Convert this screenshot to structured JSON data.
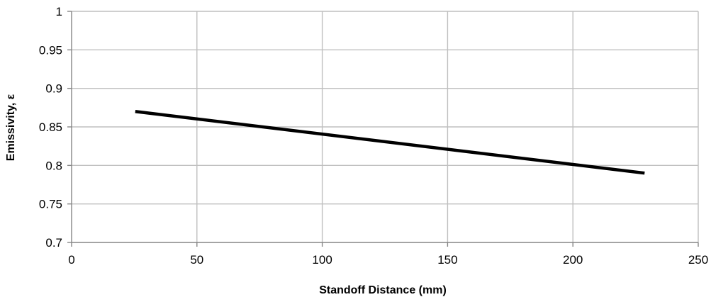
{
  "chart_data": {
    "type": "line",
    "title": "",
    "xlabel": "Standoff Distance (mm)",
    "ylabel": "Emissivity, ε",
    "xlim": [
      0,
      250
    ],
    "ylim": [
      0.7,
      1
    ],
    "x_ticks": [
      "0",
      "50",
      "100",
      "150",
      "200",
      "250"
    ],
    "y_ticks": [
      "0.7",
      "0.75",
      "0.8",
      "0.85",
      "0.9",
      "0.95",
      "1"
    ],
    "x_tick_values": [
      0,
      50,
      100,
      150,
      200,
      250
    ],
    "y_tick_values": [
      0.7,
      0.75,
      0.8,
      0.85,
      0.9,
      0.95,
      1
    ],
    "grid": true,
    "legend": "none",
    "series": [
      {
        "color": "#000000",
        "x": [
          25.4,
          228.6
        ],
        "y": [
          0.87,
          0.79
        ]
      }
    ]
  }
}
